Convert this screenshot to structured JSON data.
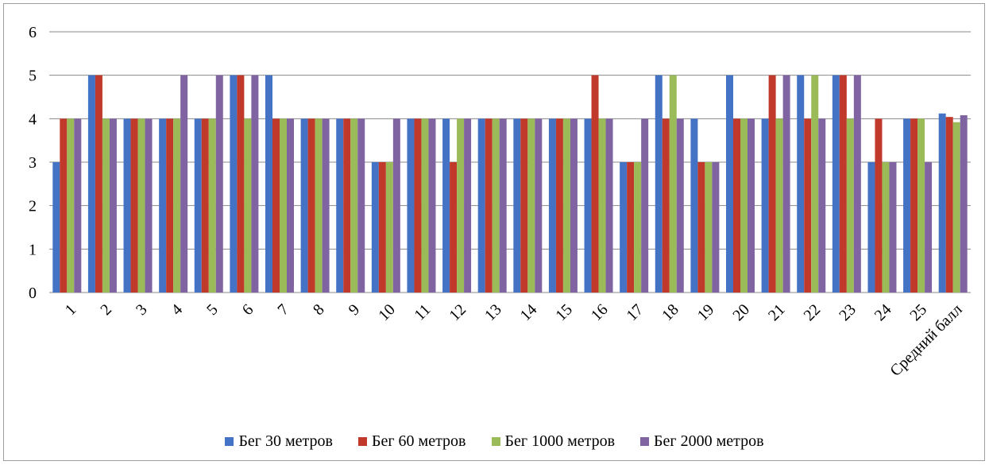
{
  "chart_data": {
    "type": "bar",
    "title": "",
    "xlabel": "",
    "ylabel": "",
    "ylim": [
      0,
      6
    ],
    "yticks": [
      0,
      1,
      2,
      3,
      4,
      5,
      6
    ],
    "grid": true,
    "legend_position": "bottom",
    "categories": [
      "1",
      "2",
      "3",
      "4",
      "5",
      "6",
      "7",
      "8",
      "9",
      "10",
      "11",
      "12",
      "13",
      "14",
      "15",
      "16",
      "17",
      "18",
      "19",
      "20",
      "21",
      "22",
      "23",
      "24",
      "25",
      "Средний балл"
    ],
    "series": [
      {
        "name": "Бег 30 метров",
        "color": "#4472C4",
        "values": [
          3,
          5,
          4,
          4,
          4,
          5,
          5,
          4,
          4,
          3,
          4,
          4,
          4,
          4,
          4,
          4,
          3,
          5,
          4,
          5,
          4,
          5,
          5,
          3,
          4,
          4.12
        ]
      },
      {
        "name": "Бег 60 метров",
        "color": "#C0392B",
        "values": [
          4,
          5,
          4,
          4,
          4,
          5,
          4,
          4,
          4,
          3,
          4,
          3,
          4,
          4,
          4,
          5,
          3,
          4,
          3,
          4,
          5,
          4,
          5,
          4,
          4,
          4.04
        ]
      },
      {
        "name": "Бег 1000 метров",
        "color": "#9BBB59",
        "values": [
          4,
          4,
          4,
          4,
          4,
          4,
          4,
          4,
          4,
          3,
          4,
          4,
          4,
          4,
          4,
          4,
          3,
          5,
          3,
          4,
          4,
          5,
          4,
          3,
          4,
          3.92
        ]
      },
      {
        "name": "Бег 2000 метров",
        "color": "#8064A2",
        "values": [
          4,
          4,
          4,
          5,
          5,
          5,
          4,
          4,
          4,
          4,
          4,
          4,
          4,
          4,
          4,
          4,
          4,
          4,
          3,
          4,
          5,
          4,
          5,
          3,
          3,
          4.08
        ]
      }
    ]
  }
}
